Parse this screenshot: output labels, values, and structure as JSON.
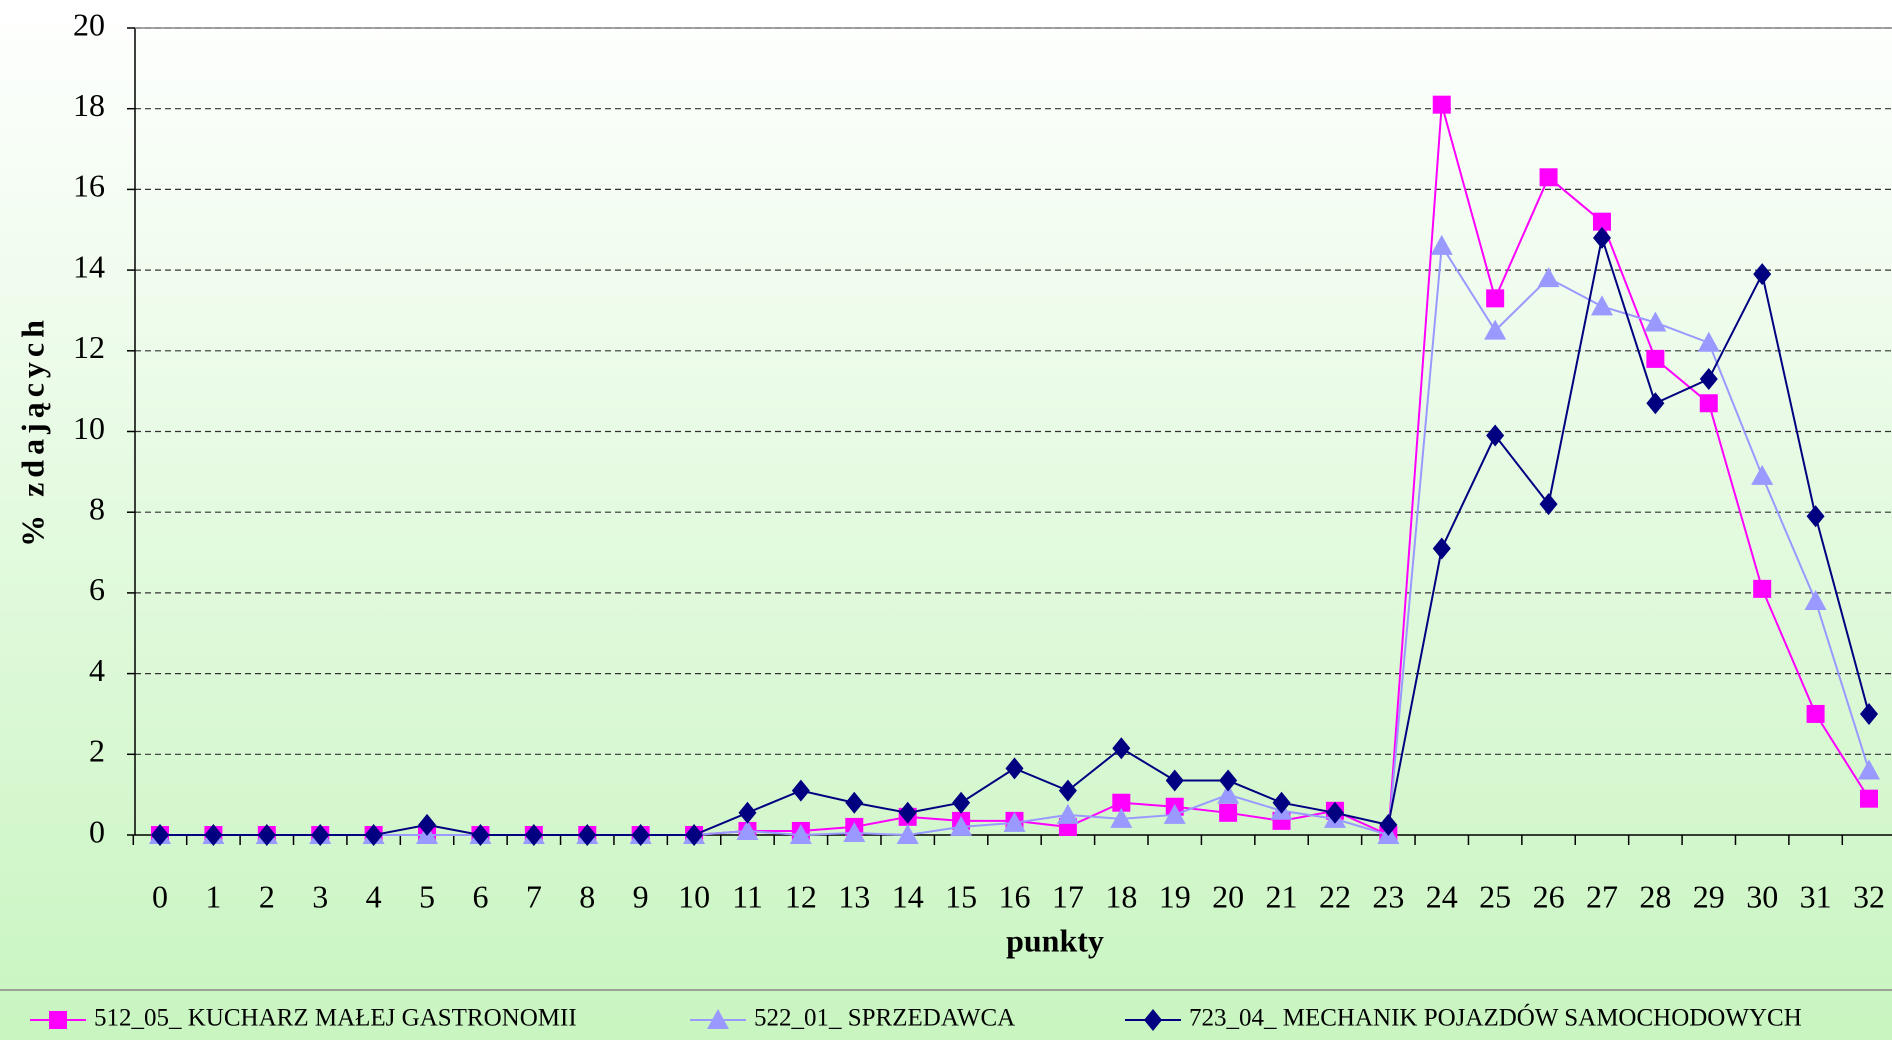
{
  "chart_data": {
    "type": "line",
    "y_label": "% zdających",
    "x_label": "punkty",
    "categories": [
      "0",
      "1",
      "2",
      "3",
      "4",
      "5",
      "6",
      "7",
      "8",
      "9",
      "10",
      "11",
      "12",
      "13",
      "14",
      "15",
      "16",
      "17",
      "18",
      "19",
      "20",
      "21",
      "22",
      "23",
      "24",
      "25",
      "26",
      "27",
      "28",
      "29",
      "30",
      "31",
      "32"
    ],
    "series": [
      {
        "name": "512_05_ KUCHARZ MAŁEJ GASTRONOMII",
        "color": "#ff00ff",
        "marker": "square",
        "values": [
          0,
          0,
          0,
          0,
          0,
          0,
          0,
          0,
          0,
          0,
          0,
          0.1,
          0.1,
          0.2,
          0.45,
          0.35,
          0.35,
          0.2,
          0.8,
          0.7,
          0.55,
          0.35,
          0.6,
          0,
          18.1,
          13.3,
          16.3,
          15.2,
          11.8,
          10.7,
          6.1,
          3.0,
          0.9
        ]
      },
      {
        "name": "522_01_ SPRZEDAWCA",
        "color": "#9999ff",
        "marker": "triangle",
        "values": [
          0,
          0,
          0,
          0,
          0,
          0,
          0,
          0,
          0,
          0,
          0,
          0.1,
          0,
          0.05,
          0,
          0.2,
          0.3,
          0.5,
          0.4,
          0.5,
          1.0,
          0.6,
          0.4,
          0,
          14.6,
          12.5,
          13.8,
          13.1,
          12.7,
          12.2,
          8.9,
          5.8,
          1.6
        ]
      },
      {
        "name": "723_04_ MECHANIK POJAZDÓW SAMOCHODOWYCH",
        "color": "#000080",
        "marker": "diamond",
        "values": [
          0,
          0,
          0,
          0,
          0,
          0.25,
          0,
          0,
          0,
          0,
          0,
          0.55,
          1.1,
          0.8,
          0.55,
          0.8,
          1.65,
          1.1,
          2.15,
          1.35,
          1.35,
          0.8,
          0.55,
          0.25,
          7.1,
          9.9,
          8.2,
          14.8,
          10.7,
          11.3,
          13.9,
          7.9,
          3.0
        ]
      }
    ],
    "ylim": [
      0,
      20
    ],
    "yticks": [
      0,
      2,
      4,
      6,
      8,
      10,
      12,
      14,
      16,
      18,
      20
    ],
    "grid": true,
    "legend": "bottom"
  }
}
